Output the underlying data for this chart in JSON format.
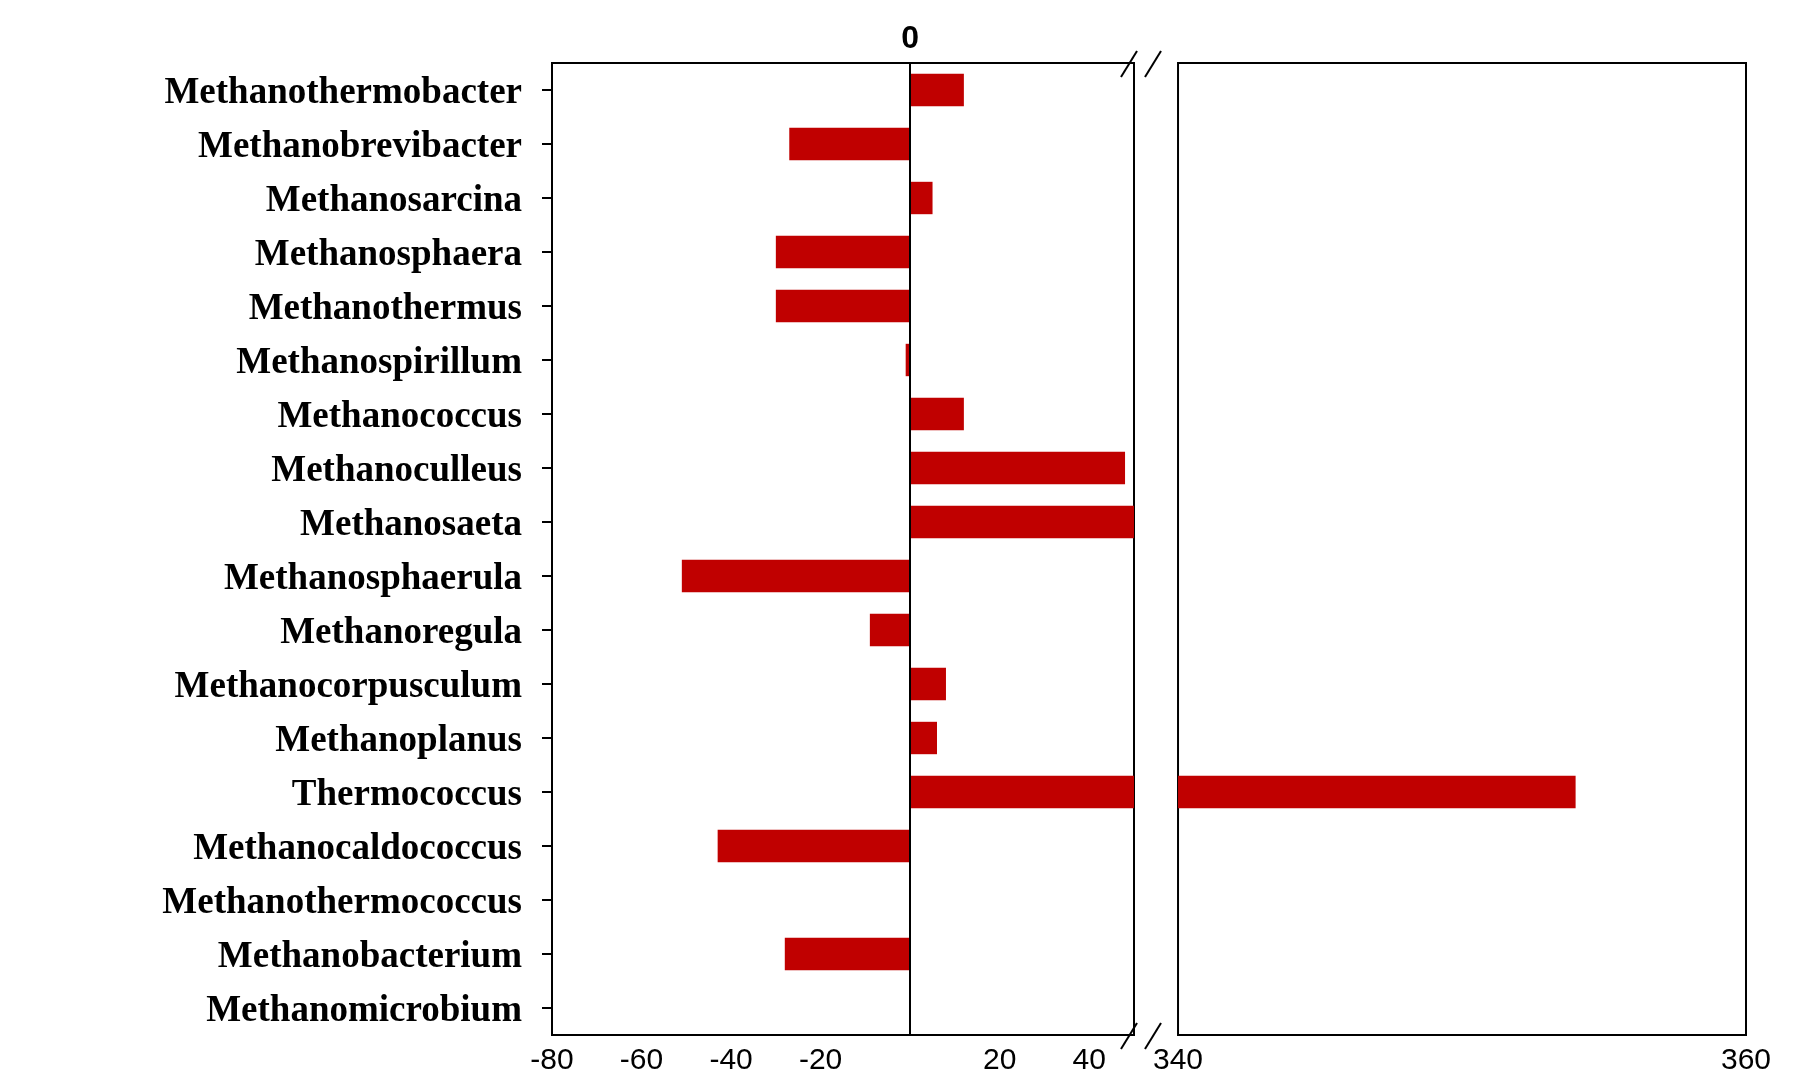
{
  "chart_data": [
    {
      "type": "bar",
      "orientation": "horizontal",
      "categories": [
        "Methanothermobacter",
        "Methanobrevibacter",
        "Methanosarcina",
        "Methanosphaera",
        "Methanothermus",
        "Methanospirillum",
        "Methanococcus",
        "Methanoculleus",
        "Methanosaeta",
        "Methanosphaerula",
        "Methanoregula",
        "Methanocorpusculum",
        "Methanoplanus",
        "Thermococcus",
        "Methanocaldococcus",
        "Methanothermococcus",
        "Methanobacterium",
        "Methanomicrobium"
      ],
      "values": [
        12,
        -27,
        5,
        -30,
        -30,
        -1,
        12,
        48,
        50,
        -51,
        -9,
        8,
        6,
        50,
        -43,
        null,
        -28,
        null
      ],
      "color": "#c00000",
      "xlim": [
        -80,
        50
      ],
      "xticks": [
        -80,
        -60,
        -40,
        -20,
        20,
        40
      ],
      "ref_lines": [
        {
          "axis": "x",
          "value": 0,
          "label": "0"
        }
      ]
    },
    {
      "type": "bar",
      "orientation": "horizontal",
      "tick_labels": "x",
      "categories": [
        null,
        null,
        null,
        null,
        null,
        null,
        null,
        null,
        null,
        null,
        null,
        null,
        null,
        null,
        null,
        null,
        null,
        null
      ],
      "values": [
        null,
        null,
        null,
        null,
        null,
        null,
        null,
        null,
        null,
        null,
        null,
        null,
        null,
        354,
        null,
        null,
        null,
        null
      ],
      "color": "#c00000",
      "xlim": [
        340,
        360
      ],
      "xticks": [
        340,
        360
      ]
    }
  ]
}
